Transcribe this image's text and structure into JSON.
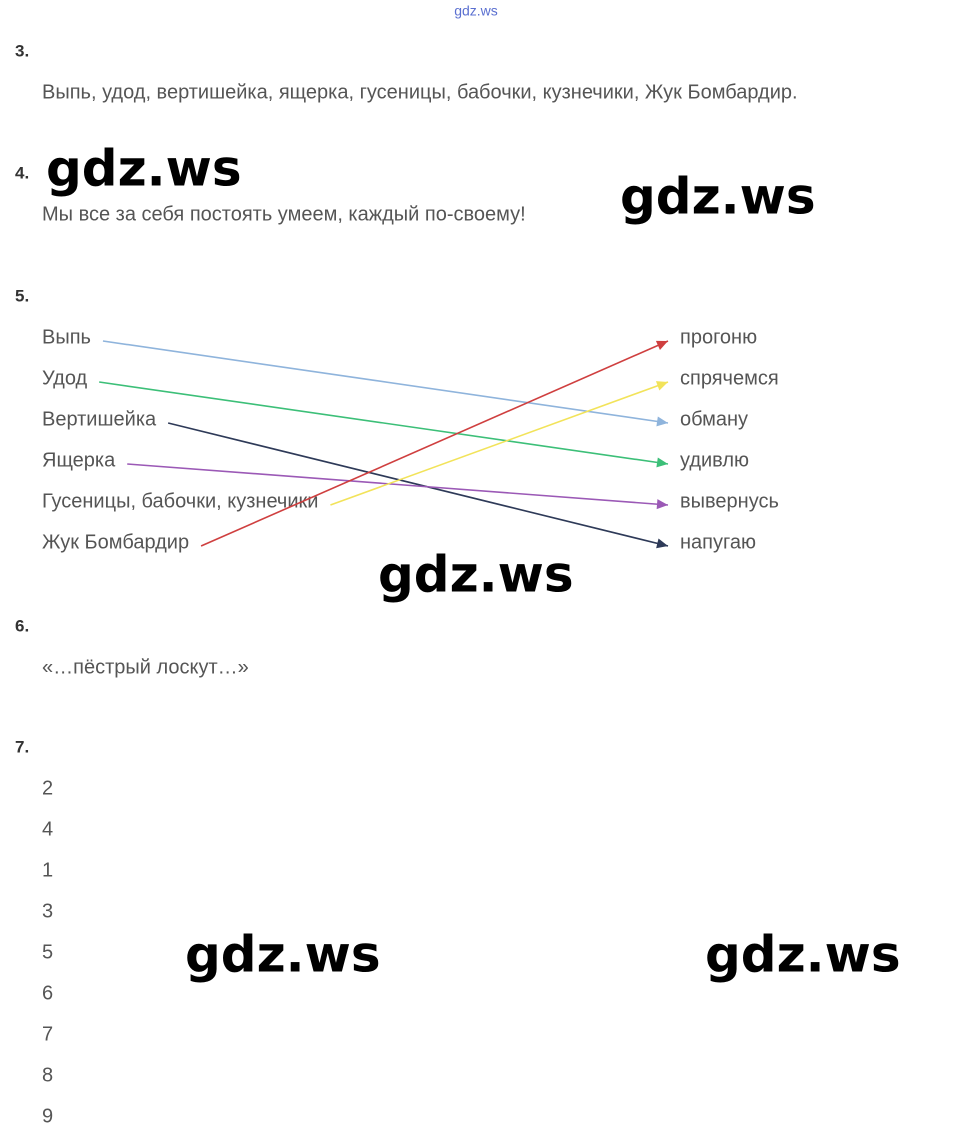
{
  "header": {
    "site": "gdz.ws"
  },
  "sections": [
    {
      "number": "3.",
      "text": "Выпь, удод, вертишейка, ящерка, гусеницы, бабочки, кузнечики, Жук Бомбардир."
    },
    {
      "number": "4.",
      "text": "Мы все за себя постоять умеем, каждый по-своему!"
    },
    {
      "number": "5.",
      "left": [
        "Выпь",
        "Удод",
        "Вертишейка",
        "Ящерка",
        "Гусеницы, бабочки, кузнечики",
        "Жук Бомбардир"
      ],
      "right": [
        "прогоню",
        "спрячемся",
        "обману",
        "удивлю",
        "вывернусь",
        "напугаю"
      ],
      "links": [
        {
          "from": 0,
          "to": 2,
          "color": "#8fb4dc"
        },
        {
          "from": 1,
          "to": 3,
          "color": "#3cbf78"
        },
        {
          "from": 2,
          "to": 5,
          "color": "#2e3a58"
        },
        {
          "from": 3,
          "to": 4,
          "color": "#9b59b6"
        },
        {
          "from": 4,
          "to": 1,
          "color": "#f2e35a"
        },
        {
          "from": 5,
          "to": 0,
          "color": "#cf3f3f"
        }
      ]
    },
    {
      "number": "6.",
      "text": "«…пёстрый лоскут…»"
    },
    {
      "number": "7.",
      "items": [
        2,
        4,
        1,
        3,
        5,
        6,
        7,
        8,
        9
      ]
    }
  ],
  "watermarks": [
    "gdz.ws",
    "gdz.ws",
    "gdz.ws",
    "gdz.ws",
    "gdz.ws"
  ]
}
